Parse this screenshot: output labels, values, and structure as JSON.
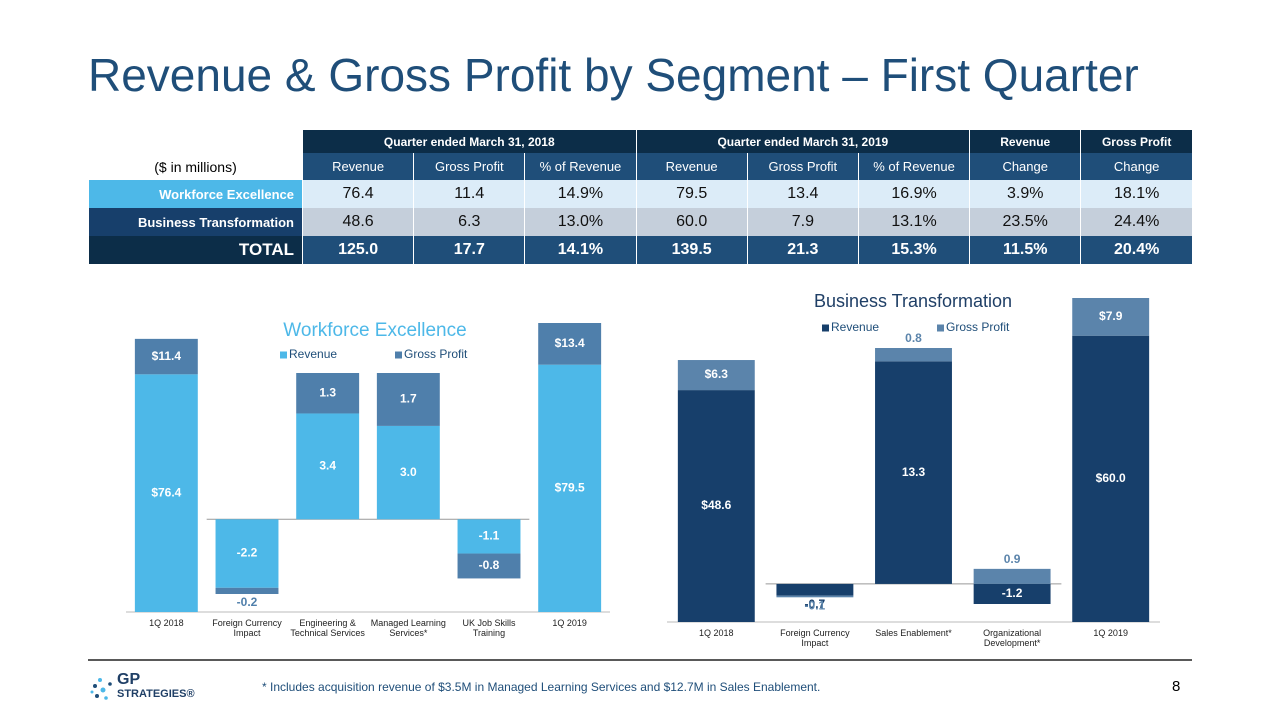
{
  "title": "Revenue & Gross Profit by Segment – First Quarter",
  "table": {
    "note": "($ in millions)",
    "groups": [
      "Quarter ended March 31, 2018",
      "Quarter ended March 31, 2019",
      "Revenue",
      "Gross Profit"
    ],
    "columns": [
      "Revenue",
      "Gross Profit",
      "% of Revenue",
      "Revenue",
      "Gross Profit",
      "% of Revenue",
      "Change",
      "Change"
    ],
    "rows": [
      {
        "label": "Workforce Excellence",
        "cells": [
          "76.4",
          "11.4",
          "14.9%",
          "79.5",
          "13.4",
          "16.9%",
          "3.9%",
          "18.1%"
        ]
      },
      {
        "label": "Business Transformation",
        "cells": [
          "48.6",
          "6.3",
          "13.0%",
          "60.0",
          "7.9",
          "13.1%",
          "23.5%",
          "24.4%"
        ]
      },
      {
        "label": "TOTAL",
        "cells": [
          "125.0",
          "17.7",
          "14.1%",
          "139.5",
          "21.3",
          "15.3%",
          "11.5%",
          "20.4%"
        ]
      }
    ]
  },
  "chart_data": [
    {
      "type": "waterfall",
      "title": "Workforce Excellence",
      "title_color": "#4db8e8",
      "categories": [
        "1Q 2018",
        "Foreign Currency Impact",
        "Engineering & Technical Services",
        "Managed Learning Services*",
        "UK Job Skills Training",
        "1Q 2019"
      ],
      "series": [
        {
          "name": "Revenue",
          "color": "#4db8e8",
          "values": [
            76.4,
            -2.2,
            3.4,
            3.0,
            -1.1,
            79.5
          ],
          "value_labels": [
            "$76.4",
            "-2.2",
            "3.4",
            "3.0",
            "-1.1",
            "$79.5"
          ]
        },
        {
          "name": "Gross Profit",
          "color": "#4f7fab",
          "values": [
            11.4,
            -0.2,
            1.3,
            1.7,
            -0.8,
            13.4
          ],
          "value_labels": [
            "$11.4",
            "-0.2",
            "1.3",
            "1.7",
            "-0.8",
            "$13.4"
          ]
        }
      ]
    },
    {
      "type": "waterfall",
      "title": "Business Transformation",
      "title_color": "#1f3f66",
      "categories": [
        "1Q 2018",
        "Foreign Currency Impact",
        "Sales Enablement*",
        "Organizational Development*",
        "1Q 2019"
      ],
      "series": [
        {
          "name": "Revenue",
          "color": "#173f6b",
          "values": [
            48.6,
            -0.7,
            13.3,
            -1.2,
            60.0
          ],
          "value_labels": [
            "$48.6",
            "-0.7",
            "13.3",
            "-1.2",
            "$60.0"
          ]
        },
        {
          "name": "Gross Profit",
          "color": "#5b84ab",
          "values": [
            6.3,
            -0.1,
            0.8,
            0.9,
            7.9
          ],
          "value_labels": [
            "$6.3",
            "-0.1",
            "0.8",
            "0.9",
            "$7.9"
          ]
        }
      ]
    }
  ],
  "footer": {
    "logo_top": "GP",
    "logo_bottom": "STRATEGIES®",
    "footnote": "* Includes acquisition revenue of $3.5M in Managed Learning Services and $12.7M in Sales Enablement.",
    "page_number": "8"
  }
}
